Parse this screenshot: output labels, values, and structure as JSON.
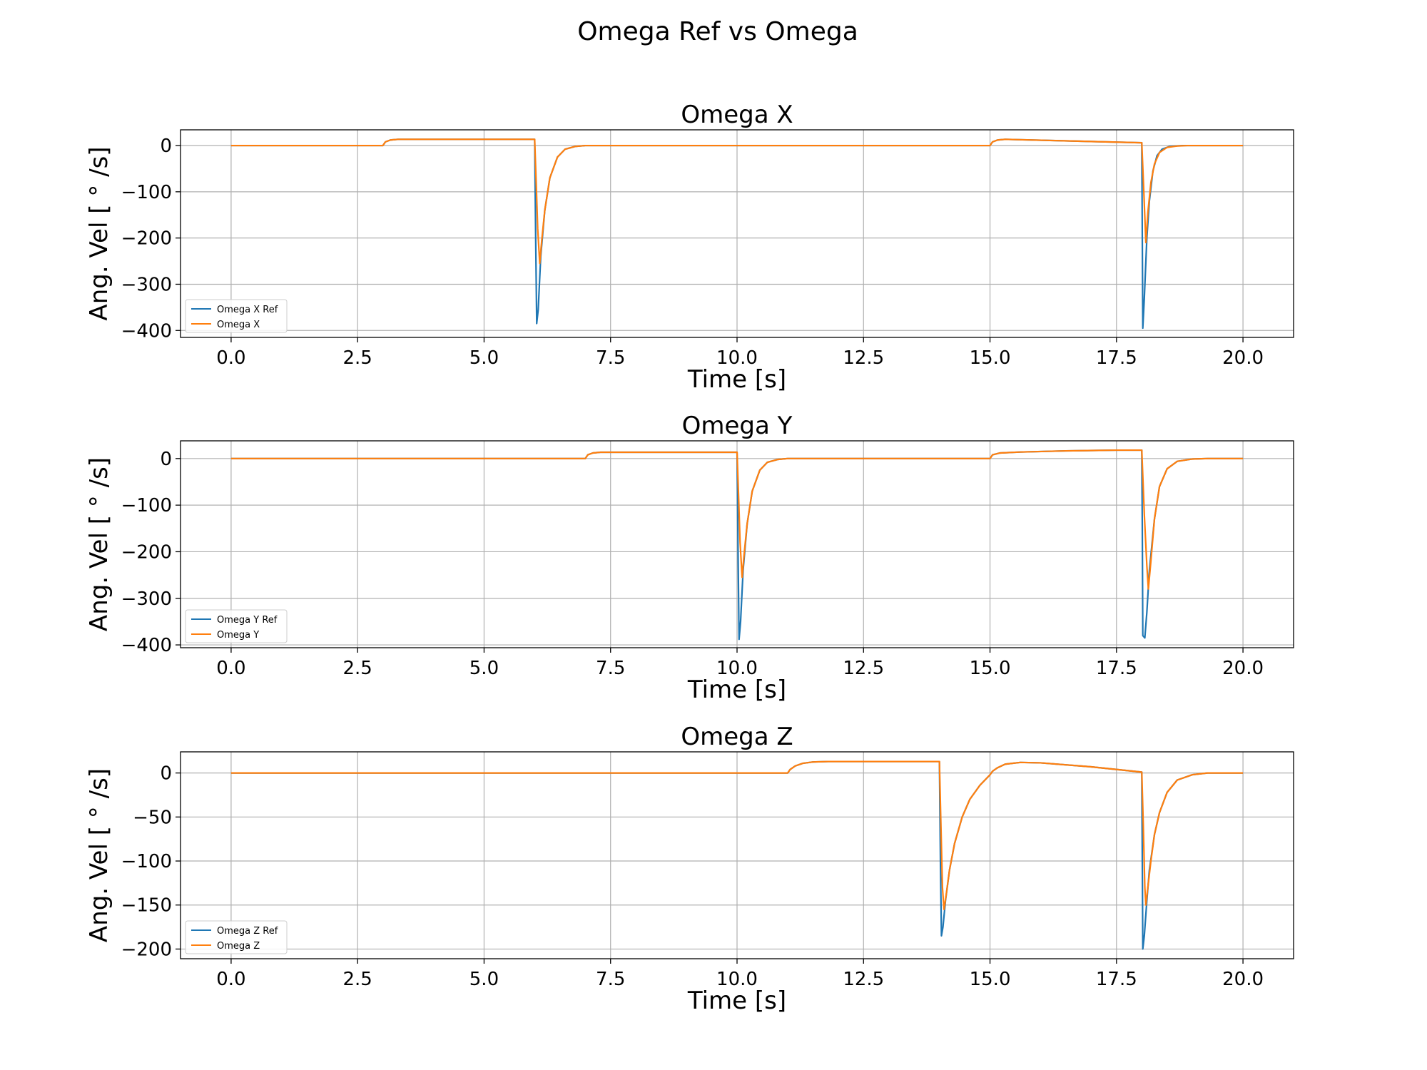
{
  "figure": {
    "title": "Omega Ref vs Omega"
  },
  "colors": {
    "ref": "#1f77b4",
    "actual": "#ff7f0e",
    "grid": "#b0b0b0"
  },
  "chart_data": [
    {
      "type": "line",
      "title": "Omega X",
      "xlabel": "Time [s]",
      "ylabel": "Ang. Vel [ ° /s]",
      "xlim": [
        -1.0,
        21.0
      ],
      "ylim": [
        -415,
        34
      ],
      "xticks": [
        0,
        2.5,
        5,
        7.5,
        10,
        12.5,
        15,
        17.5,
        20
      ],
      "xtick_labels": [
        "0.0",
        "2.5",
        "5.0",
        "7.5",
        "10.0",
        "12.5",
        "15.0",
        "17.5",
        "20.0"
      ],
      "yticks": [
        0,
        -100,
        -200,
        -300,
        -400
      ],
      "ytick_labels": [
        "0",
        "−100",
        "−200",
        "−300",
        "−400"
      ],
      "grid": true,
      "legend_position": "lower-left",
      "series": [
        {
          "name": "Omega X Ref",
          "color": "#1f77b4",
          "points": [
            [
              0,
              0
            ],
            [
              3.0,
              0
            ],
            [
              3.05,
              8
            ],
            [
              3.15,
              12
            ],
            [
              3.3,
              13.5
            ],
            [
              6.0,
              13.5
            ],
            [
              6.02,
              -200
            ],
            [
              6.04,
              -385
            ],
            [
              6.07,
              -355
            ],
            [
              6.12,
              -240
            ],
            [
              6.2,
              -140
            ],
            [
              6.3,
              -70
            ],
            [
              6.45,
              -25
            ],
            [
              6.6,
              -8
            ],
            [
              6.8,
              -2
            ],
            [
              7.0,
              0
            ],
            [
              15.0,
              0
            ],
            [
              15.05,
              8
            ],
            [
              15.15,
              12
            ],
            [
              15.3,
              13.5
            ],
            [
              18.0,
              6
            ],
            [
              18.01,
              -200
            ],
            [
              18.02,
              -395
            ],
            [
              18.05,
              -330
            ],
            [
              18.1,
              -200
            ],
            [
              18.15,
              -120
            ],
            [
              18.22,
              -55
            ],
            [
              18.3,
              -22
            ],
            [
              18.4,
              -8
            ],
            [
              18.55,
              -2
            ],
            [
              18.8,
              0
            ],
            [
              20.0,
              0
            ]
          ]
        },
        {
          "name": "Omega X",
          "color": "#ff7f0e",
          "points": [
            [
              0,
              0
            ],
            [
              3.0,
              0
            ],
            [
              3.05,
              8
            ],
            [
              3.15,
              12
            ],
            [
              3.3,
              13.5
            ],
            [
              6.0,
              13.5
            ],
            [
              6.03,
              -80
            ],
            [
              6.06,
              -180
            ],
            [
              6.1,
              -255
            ],
            [
              6.14,
              -205
            ],
            [
              6.2,
              -140
            ],
            [
              6.3,
              -70
            ],
            [
              6.45,
              -25
            ],
            [
              6.6,
              -8
            ],
            [
              6.8,
              -2
            ],
            [
              7.0,
              0
            ],
            [
              15.0,
              0
            ],
            [
              15.05,
              8
            ],
            [
              15.15,
              12
            ],
            [
              15.3,
              13.5
            ],
            [
              18.0,
              6
            ],
            [
              18.04,
              -100
            ],
            [
              18.08,
              -210
            ],
            [
              18.12,
              -145
            ],
            [
              18.18,
              -80
            ],
            [
              18.25,
              -40
            ],
            [
              18.35,
              -15
            ],
            [
              18.5,
              -4
            ],
            [
              18.7,
              -1
            ],
            [
              18.9,
              0
            ],
            [
              20.0,
              0
            ]
          ]
        }
      ]
    },
    {
      "type": "line",
      "title": "Omega Y",
      "xlabel": "Time [s]",
      "ylabel": "Ang. Vel [ ° /s]",
      "xlim": [
        -1.0,
        21.0
      ],
      "ylim": [
        -406,
        38
      ],
      "xticks": [
        0,
        2.5,
        5,
        7.5,
        10,
        12.5,
        15,
        17.5,
        20
      ],
      "xtick_labels": [
        "0.0",
        "2.5",
        "5.0",
        "7.5",
        "10.0",
        "12.5",
        "15.0",
        "17.5",
        "20.0"
      ],
      "yticks": [
        0,
        -100,
        -200,
        -300,
        -400
      ],
      "ytick_labels": [
        "0",
        "−100",
        "−200",
        "−300",
        "−400"
      ],
      "grid": true,
      "legend_position": "lower-left",
      "series": [
        {
          "name": "Omega Y Ref",
          "color": "#1f77b4",
          "points": [
            [
              0,
              0
            ],
            [
              7.0,
              0
            ],
            [
              7.05,
              8
            ],
            [
              7.15,
              12
            ],
            [
              7.3,
              13.5
            ],
            [
              10.0,
              13.5
            ],
            [
              10.02,
              -200
            ],
            [
              10.04,
              -388
            ],
            [
              10.07,
              -350
            ],
            [
              10.12,
              -240
            ],
            [
              10.2,
              -140
            ],
            [
              10.3,
              -70
            ],
            [
              10.45,
              -25
            ],
            [
              10.6,
              -8
            ],
            [
              10.8,
              -2
            ],
            [
              11.0,
              0
            ],
            [
              15.0,
              0
            ],
            [
              15.05,
              8
            ],
            [
              15.2,
              12
            ],
            [
              15.6,
              14
            ],
            [
              16.5,
              16.5
            ],
            [
              17.5,
              18
            ],
            [
              18.0,
              18
            ],
            [
              18.01,
              -150
            ],
            [
              18.02,
              -380
            ],
            [
              18.06,
              -385
            ],
            [
              18.1,
              -330
            ],
            [
              18.15,
              -240
            ],
            [
              18.25,
              -130
            ],
            [
              18.35,
              -60
            ],
            [
              18.5,
              -22
            ],
            [
              18.7,
              -6
            ],
            [
              19.0,
              -1
            ],
            [
              19.3,
              0
            ],
            [
              20.0,
              0
            ]
          ]
        },
        {
          "name": "Omega Y",
          "color": "#ff7f0e",
          "points": [
            [
              0,
              0
            ],
            [
              7.0,
              0
            ],
            [
              7.05,
              8
            ],
            [
              7.15,
              12
            ],
            [
              7.3,
              13.5
            ],
            [
              10.0,
              13.5
            ],
            [
              10.03,
              -80
            ],
            [
              10.06,
              -180
            ],
            [
              10.1,
              -255
            ],
            [
              10.14,
              -205
            ],
            [
              10.2,
              -140
            ],
            [
              10.3,
              -70
            ],
            [
              10.45,
              -25
            ],
            [
              10.6,
              -8
            ],
            [
              10.8,
              -2
            ],
            [
              11.0,
              0
            ],
            [
              15.0,
              0
            ],
            [
              15.05,
              8
            ],
            [
              15.2,
              12
            ],
            [
              15.6,
              14
            ],
            [
              16.5,
              16.5
            ],
            [
              17.5,
              18
            ],
            [
              18.0,
              18
            ],
            [
              18.05,
              -120
            ],
            [
              18.1,
              -230
            ],
            [
              18.13,
              -280
            ],
            [
              18.18,
              -220
            ],
            [
              18.25,
              -130
            ],
            [
              18.35,
              -60
            ],
            [
              18.5,
              -22
            ],
            [
              18.7,
              -6
            ],
            [
              19.0,
              -1
            ],
            [
              19.3,
              0
            ],
            [
              20.0,
              0
            ]
          ]
        }
      ]
    },
    {
      "type": "line",
      "title": "Omega Z",
      "xlabel": "Time [s]",
      "ylabel": "Ang. Vel [ ° /s]",
      "xlim": [
        -1.0,
        21.0
      ],
      "ylim": [
        -211,
        24
      ],
      "xticks": [
        0,
        2.5,
        5,
        7.5,
        10,
        12.5,
        15,
        17.5,
        20
      ],
      "xtick_labels": [
        "0.0",
        "2.5",
        "5.0",
        "7.5",
        "10.0",
        "12.5",
        "15.0",
        "17.5",
        "20.0"
      ],
      "yticks": [
        0,
        -50,
        -100,
        -150,
        -200
      ],
      "ytick_labels": [
        "0",
        "−50",
        "−100",
        "−150",
        "−200"
      ],
      "grid": true,
      "legend_position": "lower-left",
      "series": [
        {
          "name": "Omega Z Ref",
          "color": "#1f77b4",
          "points": [
            [
              0,
              0
            ],
            [
              11.0,
              0
            ],
            [
              11.05,
              4
            ],
            [
              11.15,
              8
            ],
            [
              11.3,
              11
            ],
            [
              11.5,
              12.5
            ],
            [
              11.8,
              13
            ],
            [
              14.0,
              13
            ],
            [
              14.02,
              -100
            ],
            [
              14.04,
              -185
            ],
            [
              14.07,
              -175
            ],
            [
              14.12,
              -145
            ],
            [
              14.2,
              -110
            ],
            [
              14.3,
              -80
            ],
            [
              14.45,
              -50
            ],
            [
              14.6,
              -30
            ],
            [
              14.8,
              -14
            ],
            [
              15.0,
              -2
            ],
            [
              15.05,
              2
            ],
            [
              15.15,
              6
            ],
            [
              15.3,
              10
            ],
            [
              15.6,
              12
            ],
            [
              16.0,
              11.5
            ],
            [
              17.0,
              7
            ],
            [
              18.0,
              1
            ],
            [
              18.01,
              -100
            ],
            [
              18.02,
              -200
            ],
            [
              18.05,
              -185
            ],
            [
              18.1,
              -145
            ],
            [
              18.15,
              -110
            ],
            [
              18.25,
              -70
            ],
            [
              18.35,
              -45
            ],
            [
              18.5,
              -22
            ],
            [
              18.7,
              -8
            ],
            [
              19.0,
              -2
            ],
            [
              19.3,
              0
            ],
            [
              20.0,
              0
            ]
          ]
        },
        {
          "name": "Omega Z",
          "color": "#ff7f0e",
          "points": [
            [
              0,
              0
            ],
            [
              11.0,
              0
            ],
            [
              11.05,
              4
            ],
            [
              11.15,
              8
            ],
            [
              11.3,
              11
            ],
            [
              11.5,
              12.5
            ],
            [
              11.8,
              13
            ],
            [
              14.0,
              13
            ],
            [
              14.03,
              -60
            ],
            [
              14.06,
              -130
            ],
            [
              14.09,
              -155
            ],
            [
              14.13,
              -140
            ],
            [
              14.2,
              -110
            ],
            [
              14.3,
              -80
            ],
            [
              14.45,
              -50
            ],
            [
              14.6,
              -30
            ],
            [
              14.8,
              -14
            ],
            [
              15.0,
              -2
            ],
            [
              15.05,
              2
            ],
            [
              15.15,
              6
            ],
            [
              15.3,
              10
            ],
            [
              15.6,
              12
            ],
            [
              16.0,
              11.5
            ],
            [
              17.0,
              7
            ],
            [
              18.0,
              1
            ],
            [
              18.03,
              -60
            ],
            [
              18.06,
              -130
            ],
            [
              18.08,
              -150
            ],
            [
              18.12,
              -130
            ],
            [
              18.18,
              -100
            ],
            [
              18.25,
              -70
            ],
            [
              18.35,
              -45
            ],
            [
              18.5,
              -22
            ],
            [
              18.7,
              -8
            ],
            [
              19.0,
              -2
            ],
            [
              19.3,
              0
            ],
            [
              20.0,
              0
            ]
          ]
        }
      ]
    }
  ]
}
